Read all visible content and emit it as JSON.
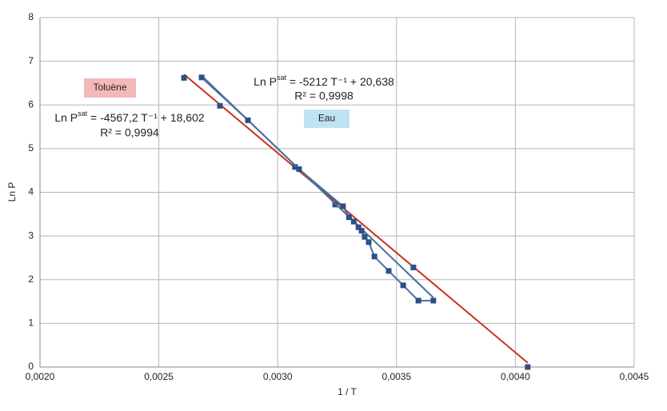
{
  "chart_data": {
    "type": "scatter",
    "x_label": "1 / T",
    "y_label": "Ln P",
    "xlim": [
      0.002,
      0.0045
    ],
    "xticks": [
      {
        "value": 0.002,
        "label": "0,0020"
      },
      {
        "value": 0.0025,
        "label": "0,0025"
      },
      {
        "value": 0.003,
        "label": "0,0030"
      },
      {
        "value": 0.0035,
        "label": "0,0035"
      },
      {
        "value": 0.004,
        "label": "0,0040"
      },
      {
        "value": 0.0045,
        "label": "0,0045"
      }
    ],
    "ylim": [
      0,
      8
    ],
    "yticks": [
      0,
      1,
      2,
      3,
      4,
      5,
      6,
      7,
      8
    ],
    "grid": true,
    "series": [
      {
        "name": "Toluène",
        "color": "#2b4f86",
        "line": false,
        "trend_color": "#c8321f",
        "legend_color": "#f5b8b8",
        "x": [
          0.002606,
          0.002757,
          0.003073,
          0.003242,
          0.003571,
          0.004052
        ],
        "values": [
          6.62,
          5.98,
          4.58,
          3.72,
          2.28,
          0.0
        ],
        "trendline": {
          "lhs": "Ln P",
          "sup": "sat",
          "eq": " = ",
          "slope": {
            "value": -4567.2,
            "label": "-4567,2"
          },
          "var": " T⁻¹ + ",
          "intercept": {
            "value": 18.602,
            "label": "18,602"
          },
          "r2": "R² = 0,9994"
        }
      },
      {
        "name": "Eau",
        "color": "#2b4f86",
        "line": true,
        "line_color": "#4a6f9e",
        "trend_color": "#4a6f9e",
        "legend_color": "#bfe3f3",
        "x": [
          0.00268,
          0.002875,
          0.00309,
          0.003275,
          0.0033,
          0.00332,
          0.00334,
          0.003353,
          0.003366,
          0.003383,
          0.003407,
          0.003467,
          0.003528,
          0.003592,
          0.003655
        ],
        "values": [
          6.63,
          5.65,
          4.53,
          3.68,
          3.43,
          3.33,
          3.2,
          3.12,
          2.98,
          2.86,
          2.53,
          2.2,
          1.87,
          1.52,
          1.52
        ],
        "trendline": {
          "lhs": "Ln P",
          "sup": "sat",
          "eq": " = ",
          "slope": {
            "value": -5212,
            "label": "-5212"
          },
          "var": " T⁻¹ + ",
          "intercept": {
            "value": 20.638,
            "label": "20,638"
          },
          "r2": "R² = 0,9998"
        }
      }
    ]
  }
}
